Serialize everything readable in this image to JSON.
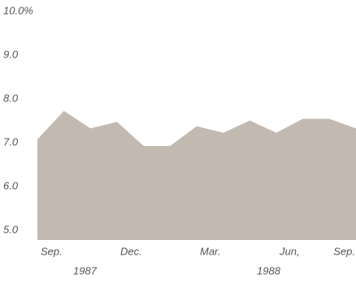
{
  "chart_data": {
    "type": "area",
    "color": "#c2b9b0",
    "categories": [
      "Sep.",
      null,
      null,
      "Dec.",
      null,
      null,
      "Mar.",
      null,
      null,
      "Jun,",
      null,
      null,
      "Sep."
    ],
    "values": [
      7.15,
      7.8,
      7.4,
      7.55,
      7.0,
      7.0,
      7.45,
      7.3,
      7.58,
      7.3,
      7.62,
      7.62,
      7.4
    ],
    "year_labels": [
      "1987",
      "1988"
    ],
    "ylim": [
      4.85,
      10
    ],
    "yticks": [
      {
        "value": 10,
        "label": "10.0%"
      },
      {
        "value": 9,
        "label": "9.0"
      },
      {
        "value": 8,
        "label": "8.0"
      },
      {
        "value": 7,
        "label": "7.0"
      },
      {
        "value": 6,
        "label": "6.0"
      },
      {
        "value": 5,
        "label": "5.0"
      }
    ]
  }
}
